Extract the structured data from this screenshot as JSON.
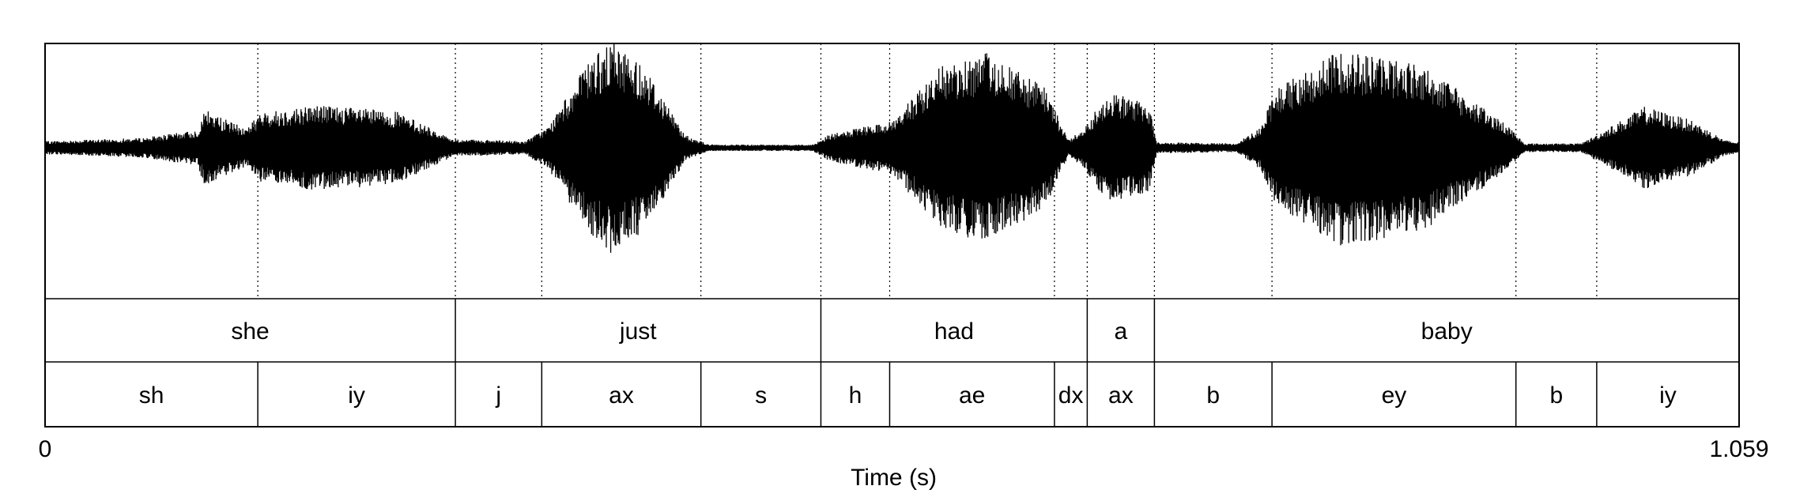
{
  "duration": 1.059,
  "axis": {
    "start_label": "0",
    "end_label": "1.059",
    "title": "Time (s)"
  },
  "words": [
    {
      "label": "she",
      "start": 0.0,
      "end": 0.2565
    },
    {
      "label": "just",
      "start": 0.2565,
      "end": 0.485
    },
    {
      "label": "had",
      "start": 0.485,
      "end": 0.6515
    },
    {
      "label": "a",
      "start": 0.6515,
      "end": 0.6935
    },
    {
      "label": "baby",
      "start": 0.6935,
      "end": 1.059
    }
  ],
  "phones": [
    {
      "label": "sh",
      "start": 0.0,
      "end": 0.133
    },
    {
      "label": "iy",
      "start": 0.133,
      "end": 0.2565
    },
    {
      "label": "j",
      "start": 0.2565,
      "end": 0.3105
    },
    {
      "label": "ax",
      "start": 0.3105,
      "end": 0.41
    },
    {
      "label": "s",
      "start": 0.41,
      "end": 0.485
    },
    {
      "label": "h",
      "start": 0.485,
      "end": 0.528
    },
    {
      "label": "ae",
      "start": 0.528,
      "end": 0.631
    },
    {
      "label": "dx",
      "start": 0.631,
      "end": 0.6515
    },
    {
      "label": "ax",
      "start": 0.6515,
      "end": 0.6935
    },
    {
      "label": "b",
      "start": 0.6935,
      "end": 0.767
    },
    {
      "label": "ey",
      "start": 0.767,
      "end": 0.9195
    },
    {
      "label": "b",
      "start": 0.9195,
      "end": 0.97
    },
    {
      "label": "iy",
      "start": 0.97,
      "end": 1.059
    }
  ],
  "waveform_envelope": [
    {
      "t": 0.0,
      "amp": 0.06
    },
    {
      "t": 0.06,
      "amp": 0.09
    },
    {
      "t": 0.095,
      "amp": 0.16
    },
    {
      "t": 0.1,
      "amp": 0.35
    },
    {
      "t": 0.11,
      "amp": 0.28
    },
    {
      "t": 0.125,
      "amp": 0.18
    },
    {
      "t": 0.135,
      "amp": 0.32
    },
    {
      "t": 0.17,
      "amp": 0.4
    },
    {
      "t": 0.22,
      "amp": 0.33
    },
    {
      "t": 0.255,
      "amp": 0.08
    },
    {
      "t": 0.3,
      "amp": 0.06
    },
    {
      "t": 0.315,
      "amp": 0.2
    },
    {
      "t": 0.34,
      "amp": 0.8
    },
    {
      "t": 0.355,
      "amp": 0.98
    },
    {
      "t": 0.375,
      "amp": 0.75
    },
    {
      "t": 0.4,
      "amp": 0.12
    },
    {
      "t": 0.415,
      "amp": 0.03
    },
    {
      "t": 0.48,
      "amp": 0.03
    },
    {
      "t": 0.49,
      "amp": 0.12
    },
    {
      "t": 0.53,
      "amp": 0.25
    },
    {
      "t": 0.56,
      "amp": 0.75
    },
    {
      "t": 0.59,
      "amp": 0.88
    },
    {
      "t": 0.625,
      "amp": 0.55
    },
    {
      "t": 0.64,
      "amp": 0.07
    },
    {
      "t": 0.65,
      "amp": 0.2
    },
    {
      "t": 0.665,
      "amp": 0.52
    },
    {
      "t": 0.69,
      "amp": 0.4
    },
    {
      "t": 0.695,
      "amp": 0.05
    },
    {
      "t": 0.745,
      "amp": 0.04
    },
    {
      "t": 0.76,
      "amp": 0.2
    },
    {
      "t": 0.77,
      "amp": 0.55
    },
    {
      "t": 0.81,
      "amp": 0.9
    },
    {
      "t": 0.86,
      "amp": 0.78
    },
    {
      "t": 0.915,
      "amp": 0.2
    },
    {
      "t": 0.925,
      "amp": 0.04
    },
    {
      "t": 0.96,
      "amp": 0.04
    },
    {
      "t": 0.97,
      "amp": 0.12
    },
    {
      "t": 1.0,
      "amp": 0.38
    },
    {
      "t": 1.03,
      "amp": 0.25
    },
    {
      "t": 1.05,
      "amp": 0.07
    },
    {
      "t": 1.059,
      "amp": 0.05
    }
  ]
}
